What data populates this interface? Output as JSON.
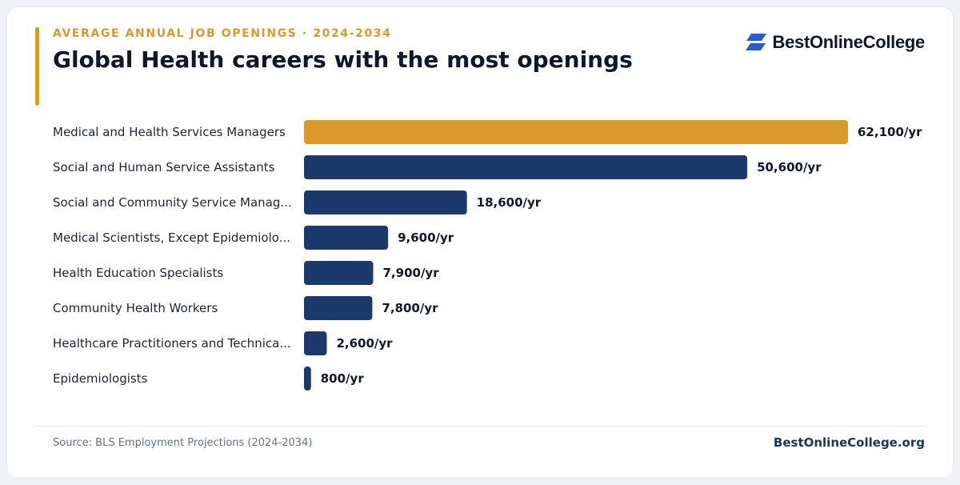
{
  "header": {
    "eyebrow": "AVERAGE ANNUAL JOB OPENINGS · 2024-2034",
    "title": "Global Health careers with the most openings"
  },
  "logo": {
    "text": "BestOnlineCollege",
    "icon": "logo-mark-icon",
    "icon_color": "#2a5bd7"
  },
  "footer": {
    "source": "Source: BLS Employment Projections (2024-2034)",
    "site": "BestOnlineCollege.org"
  },
  "colors": {
    "highlight": "#d99a28",
    "bar": "#1b3a6b",
    "accent": "#d99a28"
  },
  "chart_data": {
    "type": "bar",
    "orientation": "horizontal",
    "categories": [
      "Medical and Health Services Managers",
      "Social and Human Service Assistants",
      "Social and Community Service Manag...",
      "Medical Scientists, Except Epidemiolo...",
      "Health Education Specialists",
      "Community Health Workers",
      "Healthcare Practitioners and Technica...",
      "Epidemiologists"
    ],
    "values": [
      62100,
      50600,
      18600,
      9600,
      7900,
      7800,
      2600,
      800
    ],
    "value_labels": [
      "62,100/yr",
      "50,600/yr",
      "18,600/yr",
      "9,600/yr",
      "7,900/yr",
      "7,800/yr",
      "2,600/yr",
      "800/yr"
    ],
    "highlight_index": 0,
    "grid": false,
    "legend": "none"
  }
}
